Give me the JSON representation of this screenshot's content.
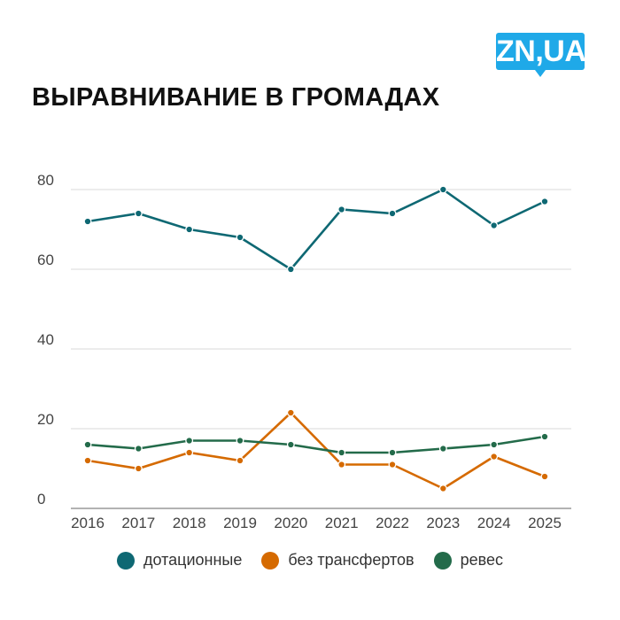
{
  "logo": "ZN,UA",
  "chart_data": {
    "type": "line",
    "title": "ВЫРАВНИВАНИЕ В ГРОМАДАХ",
    "x": [
      "2016",
      "2017",
      "2018",
      "2019",
      "2020",
      "2021",
      "2022",
      "2023",
      "2024",
      "2025"
    ],
    "yticks": [
      "0",
      "20",
      "40",
      "60",
      "80"
    ],
    "ylim": [
      0,
      80
    ],
    "grid": true,
    "legend_position": "bottom",
    "series": [
      {
        "name": "дотационные",
        "color": "#0e6873",
        "values": [
          72,
          74,
          70,
          68,
          60,
          75,
          74,
          80,
          71,
          77
        ]
      },
      {
        "name": "без трансфертов",
        "color": "#d56a00",
        "values": [
          12,
          10,
          14,
          12,
          24,
          11,
          11,
          5,
          13,
          8
        ]
      },
      {
        "name": "ревес",
        "color": "#236b4a",
        "values": [
          16,
          15,
          17,
          17,
          16,
          14,
          14,
          15,
          16,
          18
        ]
      }
    ]
  }
}
